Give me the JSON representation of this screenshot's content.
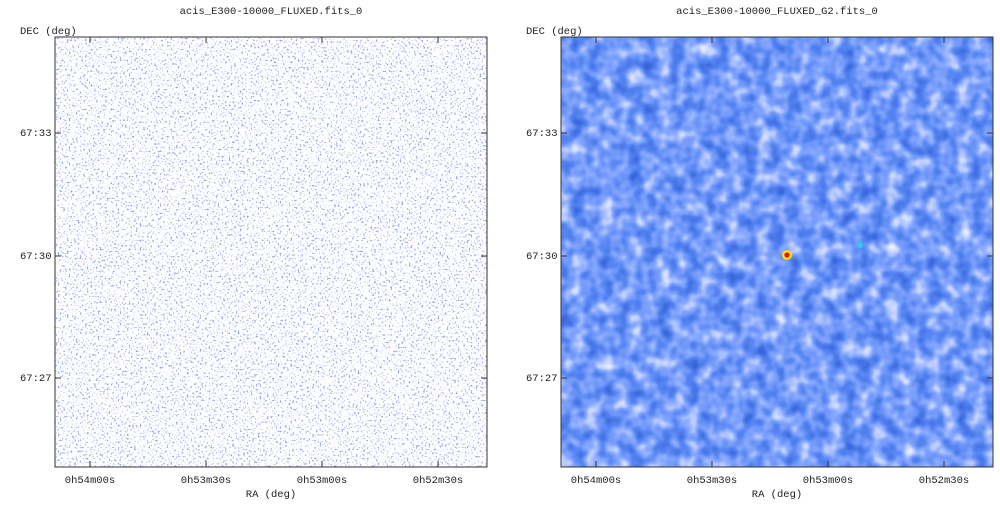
{
  "panels": [
    {
      "title": "acis_E300-10000_FLUXED.fits_0",
      "ylabel": "DEC (deg)",
      "xlabel": "RA (deg)",
      "yticks": [
        "67:33",
        "67:30",
        "67:27"
      ],
      "xticks": [
        "0h54m00s",
        "0h53m30s",
        "0h53m00s",
        "0h52m30s"
      ]
    },
    {
      "title": "acis_E300-10000_FLUXED_G2.fits_0",
      "ylabel": "DEC (deg)",
      "xlabel": "RA (deg)",
      "yticks": [
        "67:33",
        "67:30",
        "67:27"
      ],
      "xticks": [
        "0h54m00s",
        "0h53m30s",
        "0h53m00s",
        "0h52m30s"
      ]
    }
  ]
}
